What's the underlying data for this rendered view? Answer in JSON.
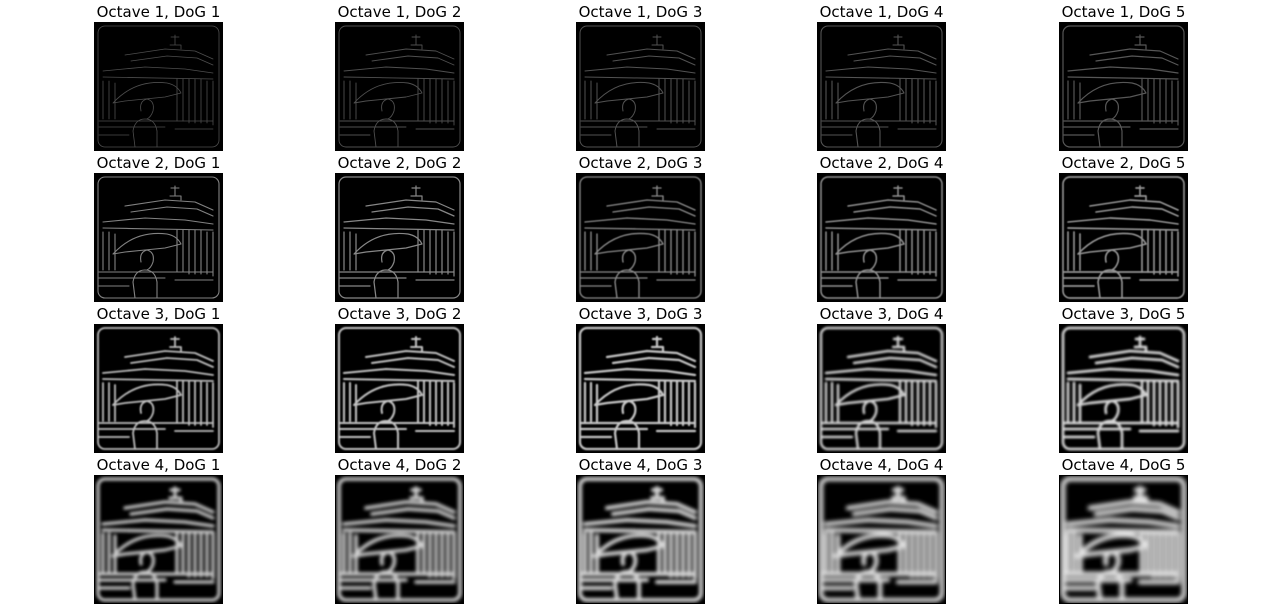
{
  "figure": {
    "colors": {
      "background": "#ffffff",
      "image_background": "#000000",
      "edge": "#ffffff"
    },
    "panels": [
      {
        "title": "Octave 1, DoG 1",
        "octave": 1,
        "dog": 1
      },
      {
        "title": "Octave 1, DoG 2",
        "octave": 1,
        "dog": 2
      },
      {
        "title": "Octave 1, DoG 3",
        "octave": 1,
        "dog": 3
      },
      {
        "title": "Octave 1, DoG 4",
        "octave": 1,
        "dog": 4
      },
      {
        "title": "Octave 1, DoG 5",
        "octave": 1,
        "dog": 5
      },
      {
        "title": "Octave 2, DoG 1",
        "octave": 2,
        "dog": 1
      },
      {
        "title": "Octave 2, DoG 2",
        "octave": 2,
        "dog": 2
      },
      {
        "title": "Octave 2, DoG 3",
        "octave": 2,
        "dog": 3
      },
      {
        "title": "Octave 2, DoG 4",
        "octave": 2,
        "dog": 4
      },
      {
        "title": "Octave 2, DoG 5",
        "octave": 2,
        "dog": 5
      },
      {
        "title": "Octave 3, DoG 1",
        "octave": 3,
        "dog": 1
      },
      {
        "title": "Octave 3, DoG 2",
        "octave": 3,
        "dog": 2
      },
      {
        "title": "Octave 3, DoG 3",
        "octave": 3,
        "dog": 3
      },
      {
        "title": "Octave 3, DoG 4",
        "octave": 3,
        "dog": 4
      },
      {
        "title": "Octave 3, DoG 5",
        "octave": 3,
        "dog": 5
      },
      {
        "title": "Octave 4, DoG 1",
        "octave": 4,
        "dog": 1
      },
      {
        "title": "Octave 4, DoG 2",
        "octave": 4,
        "dog": 2
      },
      {
        "title": "Octave 4, DoG 3",
        "octave": 4,
        "dog": 3
      },
      {
        "title": "Octave 4, DoG 4",
        "octave": 4,
        "dog": 4
      },
      {
        "title": "Octave 4, DoG 5",
        "octave": 4,
        "dog": 5
      }
    ]
  }
}
